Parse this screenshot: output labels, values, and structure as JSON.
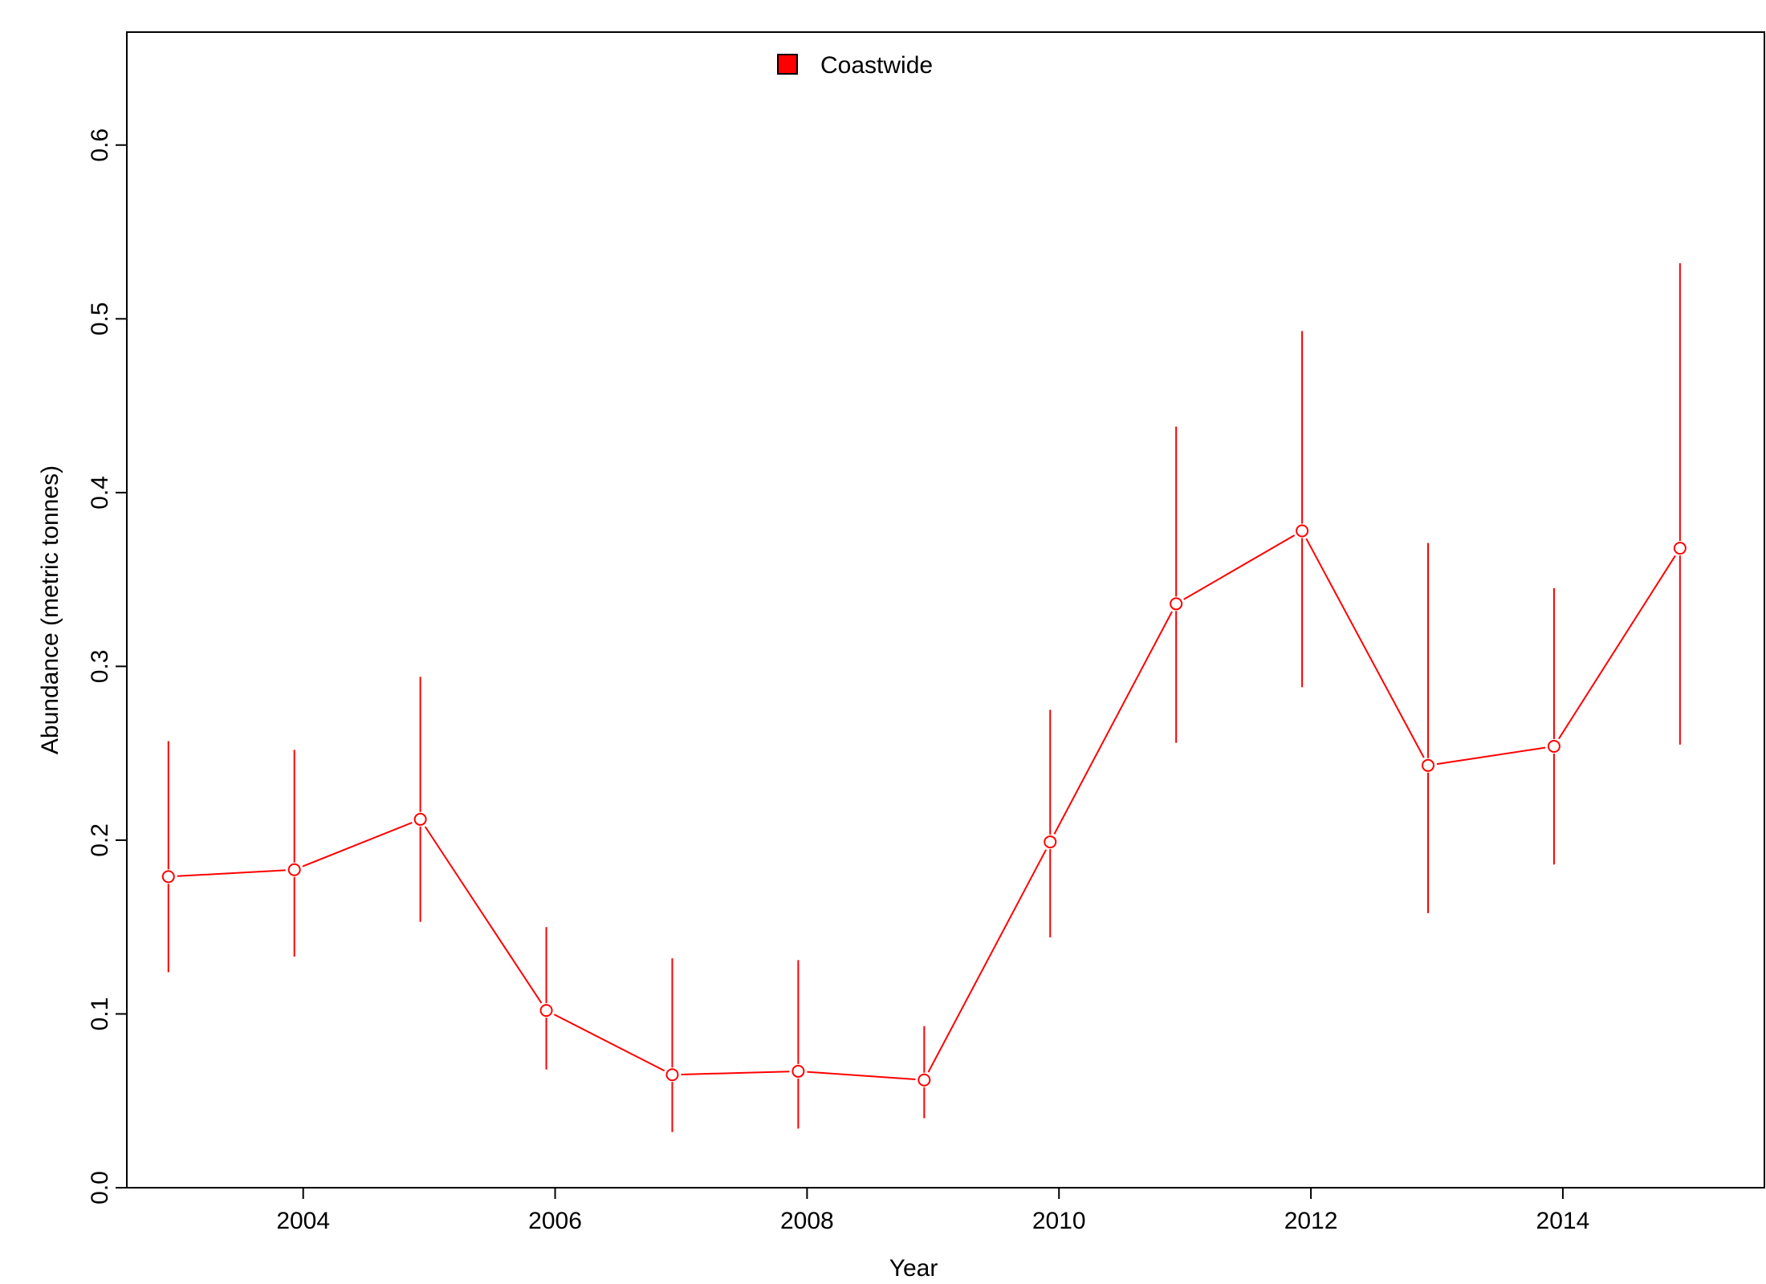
{
  "chart_data": {
    "type": "line",
    "title": "",
    "xlabel": "Year",
    "ylabel": "Abundance (metric tonnes)",
    "xlim": [
      2002.6,
      2015.6
    ],
    "ylim": [
      0,
      0.665
    ],
    "x_ticks": [
      "2004",
      "2006",
      "2008",
      "2010",
      "2012",
      "2014"
    ],
    "y_ticks": [
      "0.0",
      "0.1",
      "0.2",
      "0.3",
      "0.4",
      "0.5",
      "0.6"
    ],
    "legend_position": "top-center",
    "grid": false,
    "series": [
      {
        "name": "Coastwide",
        "color": "#ff0000",
        "x": [
          2002.93,
          2003.93,
          2004.93,
          2005.93,
          2006.93,
          2007.93,
          2008.93,
          2009.93,
          2010.93,
          2011.93,
          2012.93,
          2013.93,
          2014.93
        ],
        "y": [
          0.179,
          0.183,
          0.212,
          0.102,
          0.065,
          0.067,
          0.062,
          0.199,
          0.336,
          0.378,
          0.243,
          0.254,
          0.368
        ],
        "lower": [
          0.124,
          0.133,
          0.153,
          0.068,
          0.032,
          0.034,
          0.04,
          0.144,
          0.256,
          0.288,
          0.158,
          0.186,
          0.255
        ],
        "upper": [
          0.257,
          0.252,
          0.294,
          0.15,
          0.132,
          0.131,
          0.093,
          0.275,
          0.438,
          0.493,
          0.371,
          0.345,
          0.532
        ]
      }
    ]
  }
}
